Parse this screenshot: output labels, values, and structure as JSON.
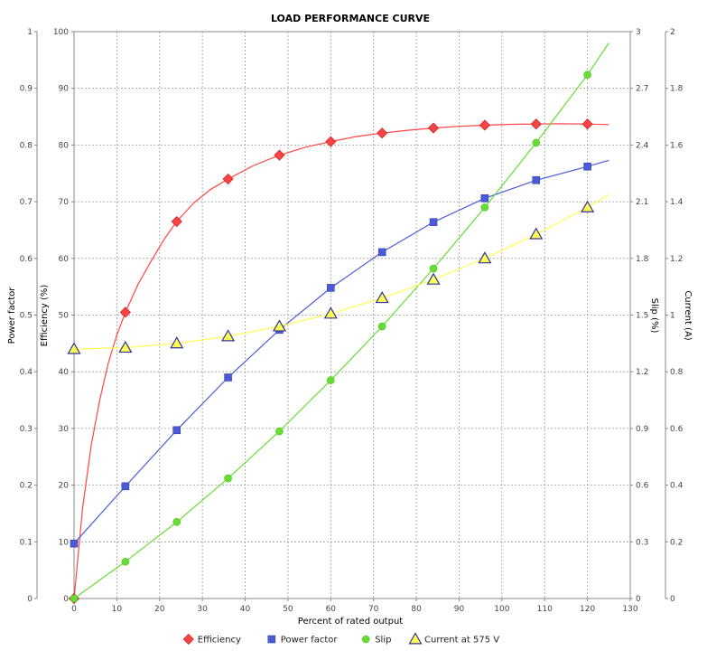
{
  "chart_data": {
    "type": "line",
    "title": "LOAD PERFORMANCE CURVE",
    "xlabel": "Percent of rated output",
    "xlim": [
      0,
      130
    ],
    "xticks": [
      0,
      10,
      20,
      30,
      40,
      50,
      60,
      70,
      80,
      90,
      100,
      110,
      120,
      130
    ],
    "grid": true,
    "legend_position": "bottom",
    "axes": {
      "power_factor": {
        "label": "Power factor",
        "side": "left-outer",
        "lim": [
          0,
          1
        ],
        "ticks": [
          "0",
          "0.1",
          "0.2",
          "0.3",
          "0.4",
          "0.5",
          "0.6",
          "0.7",
          "0.8",
          "0.9",
          "1"
        ]
      },
      "efficiency": {
        "label": "Efficiency (%)",
        "side": "left-inner",
        "lim": [
          0,
          100
        ],
        "ticks": [
          "0",
          "10",
          "20",
          "30",
          "40",
          "50",
          "60",
          "70",
          "80",
          "90",
          "100"
        ]
      },
      "slip": {
        "label": "Slip (%)",
        "side": "right-inner",
        "lim": [
          0,
          3
        ],
        "ticks": [
          "0",
          "0.3",
          "0.6",
          "0.9",
          "1.2",
          "1.5",
          "1.8",
          "2.1",
          "2.4",
          "2.7",
          "3"
        ]
      },
      "current": {
        "label": "Current (A)",
        "side": "right-outer",
        "lim": [
          0,
          2
        ],
        "ticks": [
          "0",
          "0.2",
          "0.4",
          "0.6",
          "0.8",
          "1",
          "1.2",
          "1.4",
          "1.6",
          "1.8",
          "2"
        ]
      }
    },
    "series": [
      {
        "name": "Efficiency",
        "axis": "efficiency",
        "color": "#ff4444",
        "marker": "diamond",
        "points": [
          [
            0,
            0
          ],
          [
            12,
            50.5
          ],
          [
            24,
            66.5
          ],
          [
            36,
            74
          ],
          [
            48,
            78.2
          ],
          [
            60,
            80.6
          ],
          [
            72,
            82.1
          ],
          [
            84,
            83
          ],
          [
            96,
            83.5
          ],
          [
            108,
            83.7
          ],
          [
            120,
            83.7
          ]
        ],
        "curve": [
          [
            0,
            0
          ],
          [
            2,
            16
          ],
          [
            4,
            27
          ],
          [
            6,
            35
          ],
          [
            8,
            41.5
          ],
          [
            10,
            46.5
          ],
          [
            12,
            50.5
          ],
          [
            15,
            55.5
          ],
          [
            18,
            59.5
          ],
          [
            21,
            63.3
          ],
          [
            24,
            66.5
          ],
          [
            28,
            69.8
          ],
          [
            32,
            72.2
          ],
          [
            36,
            74
          ],
          [
            42,
            76.4
          ],
          [
            48,
            78.2
          ],
          [
            54,
            79.6
          ],
          [
            60,
            80.6
          ],
          [
            66,
            81.5
          ],
          [
            72,
            82.1
          ],
          [
            78,
            82.6
          ],
          [
            84,
            83
          ],
          [
            90,
            83.3
          ],
          [
            96,
            83.5
          ],
          [
            102,
            83.65
          ],
          [
            108,
            83.7
          ],
          [
            114,
            83.75
          ],
          [
            120,
            83.7
          ],
          [
            125,
            83.6
          ]
        ]
      },
      {
        "name": "Power factor",
        "axis": "power_factor",
        "color": "#4a5bd8",
        "marker": "square",
        "points": [
          [
            0,
            0.097
          ],
          [
            12,
            0.198
          ],
          [
            24,
            0.297
          ],
          [
            36,
            0.39
          ],
          [
            48,
            0.474
          ],
          [
            60,
            0.548
          ],
          [
            72,
            0.611
          ],
          [
            84,
            0.664
          ],
          [
            96,
            0.706
          ],
          [
            108,
            0.738
          ],
          [
            120,
            0.762
          ]
        ],
        "curve": [
          [
            0,
            0.097
          ],
          [
            12,
            0.198
          ],
          [
            24,
            0.297
          ],
          [
            36,
            0.39
          ],
          [
            48,
            0.474
          ],
          [
            60,
            0.548
          ],
          [
            72,
            0.611
          ],
          [
            84,
            0.664
          ],
          [
            96,
            0.706
          ],
          [
            108,
            0.738
          ],
          [
            120,
            0.762
          ],
          [
            125,
            0.773
          ]
        ]
      },
      {
        "name": "Slip",
        "axis": "slip",
        "color": "#66dd33",
        "marker": "circle",
        "points": [
          [
            0,
            0.0
          ],
          [
            12,
            0.195
          ],
          [
            24,
            0.405
          ],
          [
            36,
            0.636
          ],
          [
            48,
            0.885
          ],
          [
            60,
            1.155
          ],
          [
            72,
            1.44
          ],
          [
            84,
            1.746
          ],
          [
            96,
            2.07
          ],
          [
            108,
            2.412
          ],
          [
            120,
            2.772
          ]
        ],
        "curve": [
          [
            0,
            0.0
          ],
          [
            12,
            0.195
          ],
          [
            24,
            0.405
          ],
          [
            36,
            0.636
          ],
          [
            48,
            0.885
          ],
          [
            60,
            1.155
          ],
          [
            72,
            1.44
          ],
          [
            84,
            1.746
          ],
          [
            96,
            2.07
          ],
          [
            108,
            2.412
          ],
          [
            120,
            2.772
          ],
          [
            125,
            2.94
          ]
        ]
      },
      {
        "name": "Current at 575 V",
        "axis": "current",
        "color": "#ffff55",
        "stroke": "#333399",
        "marker": "triangle",
        "points": [
          [
            0,
            0.88
          ],
          [
            12,
            0.885
          ],
          [
            24,
            0.9
          ],
          [
            36,
            0.925
          ],
          [
            48,
            0.96
          ],
          [
            60,
            1.005
          ],
          [
            72,
            1.06
          ],
          [
            84,
            1.125
          ],
          [
            96,
            1.2
          ],
          [
            108,
            1.285
          ],
          [
            120,
            1.38
          ]
        ],
        "curve": [
          [
            0,
            0.88
          ],
          [
            12,
            0.885
          ],
          [
            24,
            0.9
          ],
          [
            36,
            0.925
          ],
          [
            48,
            0.96
          ],
          [
            60,
            1.005
          ],
          [
            72,
            1.06
          ],
          [
            84,
            1.125
          ],
          [
            96,
            1.2
          ],
          [
            108,
            1.285
          ],
          [
            120,
            1.38
          ],
          [
            125,
            1.425
          ]
        ]
      }
    ]
  }
}
